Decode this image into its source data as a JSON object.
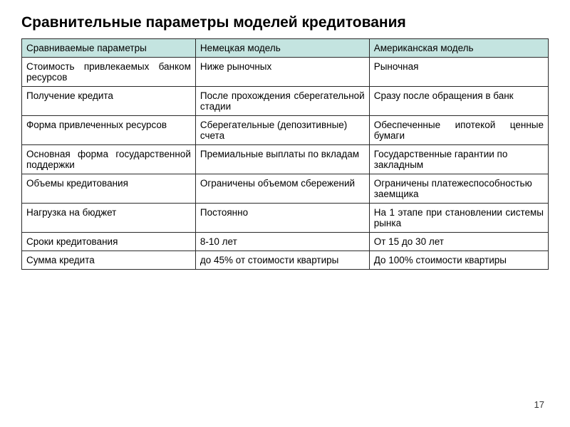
{
  "title": "Сравнительные параметры моделей кредитования",
  "page_number": "17",
  "table": {
    "header_bg": "#c4e4e0",
    "border_color": "#2a2a2a",
    "font_size": 13.5,
    "columns": [
      {
        "label": "Сравниваемые параметры",
        "width": "33%"
      },
      {
        "label": "Немецкая модель",
        "width": "33%"
      },
      {
        "label": "Американская модель",
        "width": "34%"
      }
    ],
    "rows": [
      {
        "c0": "Стоимость привлекаемых банком ресурсов",
        "c1": "Ниже рыночных",
        "c2": "Рыночная"
      },
      {
        "c0": "Получение кредита",
        "c1": "После прохождения сберегательной стадии",
        "c2": "Сразу после обращения в банк"
      },
      {
        "c0": "Форма привлеченных ресурсов",
        "c1": "Сберегательные (депозитивные) счета",
        "c2": "Обеспеченные ипотекой ценные бумаги"
      },
      {
        "c0": "Основная форма государственной поддержки",
        "c1": "Премиальные выплаты по вкладам",
        "c2": "Государственные гарантии по закладным"
      },
      {
        "c0": "Объемы кредитования",
        "c1": "Ограничены объемом сбережений",
        "c2": "Ограничены платежеспособностью заемщика"
      },
      {
        "c0": "Нагрузка на бюджет",
        "c1": "Постоянно",
        "c2": "На 1 этапе при становлении системы рынка"
      },
      {
        "c0": "Сроки кредитования",
        "c1": "8-10 лет",
        "c2": "От 15 до 30 лет"
      },
      {
        "c0": "Сумма кредита",
        "c1": "до 45% от стоимости квартиры",
        "c2": "До 100% стоимости квартиры"
      }
    ]
  }
}
